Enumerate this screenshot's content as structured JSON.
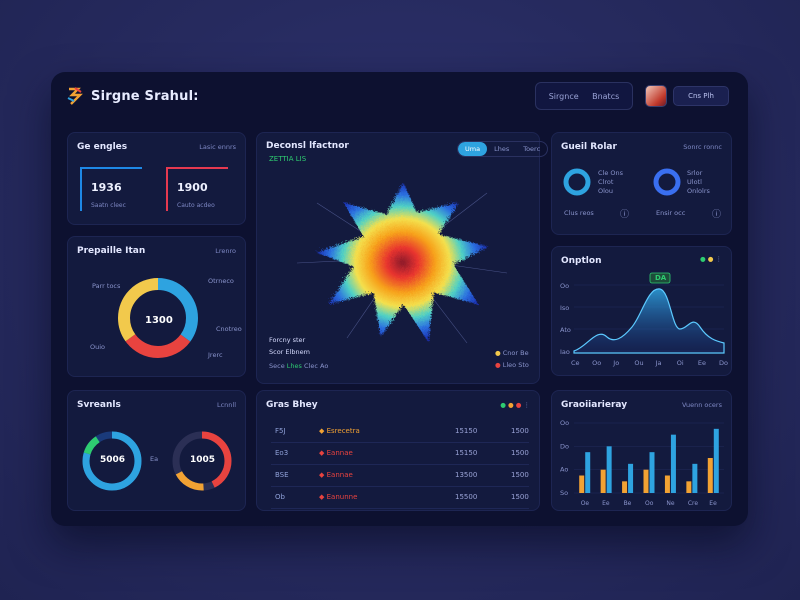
{
  "app": {
    "title": "Sirgne Srahul:"
  },
  "header": {
    "nav": [
      "Sirgnce",
      "Bnatcs"
    ],
    "user_label": "Cns Plh"
  },
  "stats_card": {
    "title": "Ge engles",
    "meta": "Lasic ennrs",
    "stats": [
      {
        "value": "1936",
        "sub": "Saatn cleec",
        "color": "#1e88e5"
      },
      {
        "value": "1900",
        "sub": "Cauto acdeo",
        "color": "#e53950"
      }
    ]
  },
  "donut_card": {
    "title": "Prepaille Itan",
    "meta": "Lrenro",
    "center": "1300",
    "labels": [
      "Parr tocs",
      "Otrneco",
      "Cnotreo",
      "Ouio",
      "Jrerc"
    ],
    "segments": [
      {
        "value": 35,
        "color": "#2ea3e0"
      },
      {
        "value": 30,
        "color": "#e8433f"
      },
      {
        "value": 35,
        "color": "#f2c94c"
      }
    ]
  },
  "heatmap_card": {
    "title": "Deconsl lfactnor",
    "subtitle": "ZETTIA LIS",
    "tabs": [
      "Uma",
      "Lhes",
      "Toerc"
    ],
    "caption_lines": [
      "Forcny ster",
      "Scor Elbnem"
    ],
    "legend_left": [
      "Sece",
      "Lhes",
      "Clec Ao"
    ],
    "legend_right": [
      {
        "label": "Cnor Be",
        "color": "#f2c94c"
      },
      {
        "label": "Lleo Sto",
        "color": "#e8433f"
      }
    ]
  },
  "rings_card": {
    "title": "Gueil Rolar",
    "meta": "Sonrc ronnc",
    "rings": [
      {
        "lines": [
          "Cle Ons",
          "Clrot",
          "Olou"
        ],
        "foot": "Clus reos",
        "color": "#2ea3e0"
      },
      {
        "lines": [
          "Srlor",
          "Ulotl",
          "Onlolrs"
        ],
        "foot": "Ensir occ",
        "color": "#3a6ff0"
      }
    ]
  },
  "area_card": {
    "title": "Onptlon",
    "peak_label": "DA",
    "y_ticks": [
      "Oo",
      "Iso",
      "Ato",
      "Iao"
    ],
    "x_ticks": [
      "Ce",
      "Oo",
      "Jo",
      "Ou",
      "Ja",
      "Oi",
      "Ee",
      "Do"
    ]
  },
  "bottom_rings_card": {
    "title": "Svreanls",
    "meta": "Lcnnll",
    "center_left": "5006",
    "center_right": "1005",
    "mid_label": "Ea"
  },
  "table_card": {
    "title": "Gras Bhey",
    "rows": [
      {
        "c1": "F5J",
        "c2": "Esrecetra",
        "c3": "15150",
        "c4": "1500",
        "c2_color": "#f2a233"
      },
      {
        "c1": "Eo3",
        "c2": "Eannae",
        "c3": "15150",
        "c4": "1500",
        "c2_color": "#e8433f"
      },
      {
        "c1": "BSE",
        "c2": "Eannae",
        "c3": "13500",
        "c4": "1500",
        "c2_color": "#e8433f"
      },
      {
        "c1": "Ob",
        "c2": "Eanunne",
        "c3": "15500",
        "c4": "1500",
        "c2_color": "#e8433f"
      }
    ]
  },
  "bar_card": {
    "title": "Graoiiarieray",
    "meta": "Vuenn ocers",
    "y_ticks": [
      "Oo",
      "Do",
      "Ao",
      "So"
    ],
    "x_ticks": [
      "Oe",
      "Ee",
      "Be",
      "Oo",
      "Ne",
      "Cre",
      "Ee"
    ]
  },
  "chart_data": {
    "type": "bar",
    "title": "Graoiiarieray",
    "categories": [
      "Oe",
      "Ee",
      "Be",
      "Oo",
      "Ne",
      "Cre",
      "Ee"
    ],
    "series": [
      {
        "values": [
          3,
          4,
          2,
          4,
          3,
          2,
          6
        ],
        "color": "#f2a233"
      },
      {
        "values": [
          7,
          8,
          5,
          7,
          10,
          5,
          11
        ],
        "color": "#2ea3e0"
      }
    ],
    "ylim": [
      0,
      12
    ],
    "grid": true
  }
}
